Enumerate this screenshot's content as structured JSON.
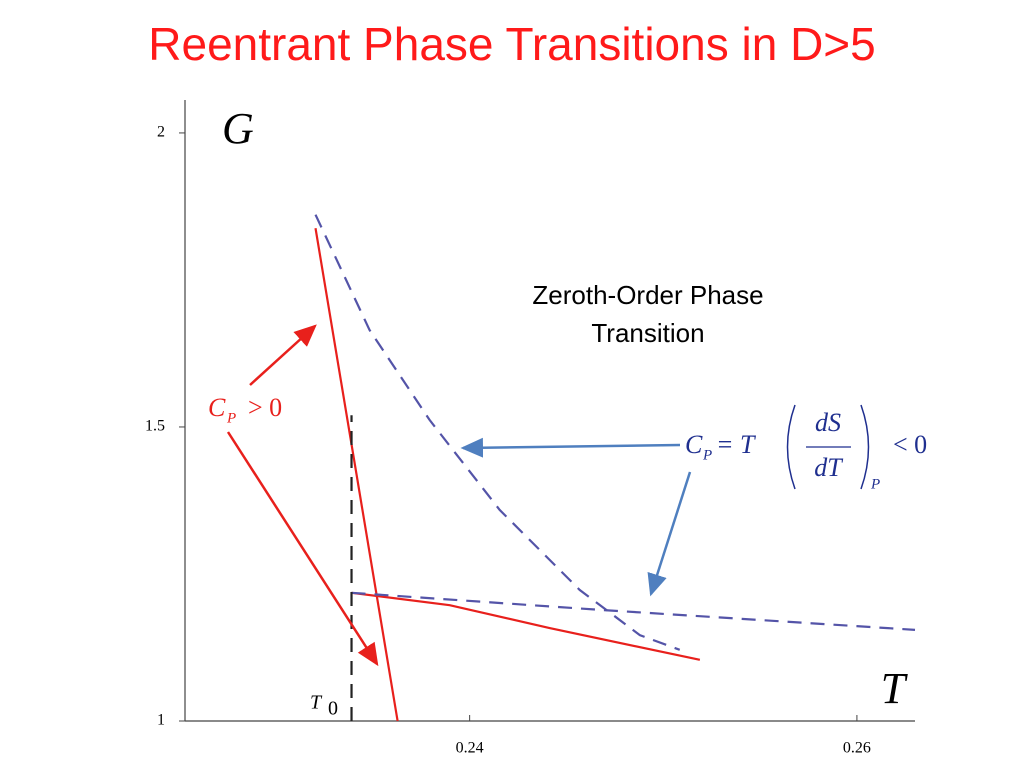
{
  "chart_data": {
    "type": "line",
    "title": "Reentrant Phase Transitions in D>5",
    "x_label": "T",
    "y_label": "G",
    "xlim": [
      0.2253,
      0.263
    ],
    "ylim": [
      1,
      2.056
    ],
    "xticks": [
      0.24,
      0.26
    ],
    "yticks": [
      1,
      1.5,
      2
    ],
    "series": [
      {
        "color": "#e8201c",
        "dash": false,
        "x": [
          0.23204,
          0.23628
        ],
        "values": [
          1.838,
          1.0
        ]
      },
      {
        "color": "#5454a8",
        "dash": true,
        "x": [
          0.23204,
          0.23483,
          0.23793,
          0.24155,
          0.24568,
          0.24879,
          0.25085
        ],
        "values": [
          1.861,
          1.665,
          1.512,
          1.359,
          1.223,
          1.146,
          1.121
        ]
      },
      {
        "color": "#e8201c",
        "dash": false,
        "x": [
          0.2339,
          0.23897,
          0.24413,
          0.25189
        ],
        "values": [
          1.218,
          1.197,
          1.158,
          1.104
        ]
      },
      {
        "color": "#5454a8",
        "dash": true,
        "x": [
          0.2339,
          0.24672,
          0.263
        ],
        "values": [
          1.218,
          1.189,
          1.155
        ]
      },
      {
        "color": "#222222",
        "dash": true,
        "x": [
          0.2339,
          0.2339
        ],
        "values": [
          1.0,
          1.52
        ]
      }
    ],
    "annotations": {
      "zeroth_order": [
        "Zeroth-Order Phase",
        "Transition"
      ],
      "cp_positive": {
        "c": "C",
        "sub": "P",
        "rest": "> 0"
      },
      "cp_formula": {
        "c": "C",
        "sub": "P",
        "eq": "= T",
        "num": "dS",
        "den": "dT",
        "sub2": "P",
        "rest": "< 0"
      },
      "t0": {
        "t": "T",
        "sub": "0"
      }
    }
  }
}
